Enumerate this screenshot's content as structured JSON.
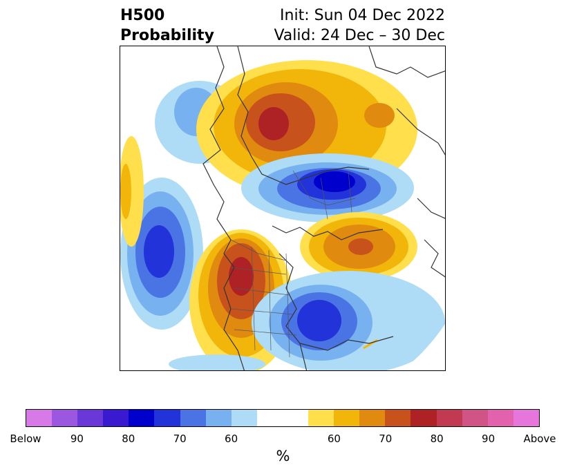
{
  "header": {
    "left_line1": "H500",
    "left_line2": "Probability",
    "right_line1": "Init: Sun 04 Dec 2022",
    "right_line2": "Valid: 24 Dec – 30 Dec"
  },
  "map": {
    "projection": "polar stereographic, North America / North Pacific / Arctic",
    "anomalies": [
      {
        "region": "Alaska / Northeast Siberia",
        "category": "Above",
        "peak_percent": 80
      },
      {
        "region": "Greenland / Baffin Island",
        "category": "Below",
        "peak_percent": 80
      },
      {
        "region": "Western North America",
        "category": "Above",
        "peak_percent": 80
      },
      {
        "region": "North Atlantic",
        "category": "Above",
        "peak_percent": 70
      },
      {
        "region": "North Pacific",
        "category": "Below",
        "peak_percent": 80
      },
      {
        "region": "Eastern United States",
        "category": "Below",
        "peak_percent": 80
      }
    ]
  },
  "colorbar": {
    "colors": [
      "#d77ae8",
      "#9b57e0",
      "#6a38d8",
      "#3a1ad0",
      "#0000cc",
      "#2233d9",
      "#4a73e3",
      "#77b1f0",
      "#aedcf7",
      "#ffffff",
      "#ffe04c",
      "#f2b60a",
      "#e08a10",
      "#c8521b",
      "#ae2125",
      "#c13a52",
      "#d05486",
      "#e262ae",
      "#e675dc"
    ],
    "tick_labels": [
      "Below",
      "90",
      "80",
      "70",
      "60",
      "60",
      "70",
      "80",
      "90",
      "Above"
    ],
    "unit_label": "%"
  }
}
